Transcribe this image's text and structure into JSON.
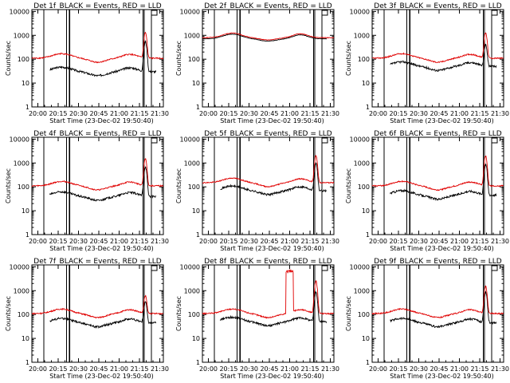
{
  "chart_data": [
    {
      "type": "line",
      "title": "Det 1f_BLACK = Events, RED = LLD",
      "xlabel": "Start Time (23-Dec-02 19:50:40)",
      "ylabel": "Counts/sec",
      "yscale": "log",
      "ylim": [
        1,
        12000
      ],
      "xlim": [
        0,
        110
      ],
      "x_ticks": [
        "20:00",
        "20:15",
        "20:30",
        "20:45",
        "21:00",
        "21:15",
        "21:30"
      ],
      "y_ticks": [
        "1",
        "10",
        "100",
        "1000",
        "10000"
      ],
      "marker_lines": [
        10,
        29,
        31.5,
        93,
        94,
        100
      ],
      "series": [
        {
          "name": "BLACK = Events",
          "color": "#000000",
          "start": 15,
          "end": 104,
          "base": 30,
          "gap_fraction": 0.32,
          "peak": {
            "x": 95,
            "value": 550
          },
          "noise": 0.1
        },
        {
          "name": "RED = LLD",
          "color": "#e00000",
          "start": 0,
          "end": 110,
          "base": 110,
          "gap_fraction": 0.32,
          "peak": {
            "x": 95,
            "value": 1300
          },
          "noise": 0.06
        }
      ]
    },
    {
      "type": "line",
      "title": "Det 2f_BLACK = Events, RED = LLD",
      "xlabel": "Start Time (23-Dec-02 19:50:40)",
      "ylabel": "Counts/sec",
      "yscale": "log",
      "ylim": [
        1,
        12000
      ],
      "xlim": [
        0,
        110
      ],
      "x_ticks": [
        "20:00",
        "20:15",
        "20:30",
        "20:45",
        "21:00",
        "21:15",
        "21:30"
      ],
      "y_ticks": [
        "1",
        "10",
        "100",
        "1000",
        "10000"
      ],
      "marker_lines": [
        10,
        29,
        31.5,
        93,
        94,
        100
      ],
      "series": [
        {
          "name": "BLACK = Events",
          "color": "#000000",
          "start": 0,
          "end": 104,
          "base": 720,
          "gap_fraction": 0.2,
          "peak": null,
          "noise": 0.02
        },
        {
          "name": "RED = LLD",
          "color": "#e00000",
          "start": 0,
          "end": 110,
          "base": 800,
          "gap_fraction": 0.2,
          "peak": null,
          "noise": 0.025
        }
      ]
    },
    {
      "type": "line",
      "title": "Det 3f_BLACK = Events, RED = LLD",
      "xlabel": "Start Time (23-Dec-02 19:50:40)",
      "ylabel": "Counts/sec",
      "yscale": "log",
      "ylim": [
        1,
        12000
      ],
      "xlim": [
        0,
        110
      ],
      "x_ticks": [
        "20:00",
        "20:15",
        "20:30",
        "20:45",
        "21:00",
        "21:15",
        "21:30"
      ],
      "y_ticks": [
        "1",
        "10",
        "100",
        "1000",
        "10000"
      ],
      "marker_lines": [
        10,
        29,
        31.5,
        93,
        94,
        100
      ],
      "series": [
        {
          "name": "BLACK = Events",
          "color": "#000000",
          "start": 15,
          "end": 104,
          "base": 50,
          "gap_fraction": 0.32,
          "peak": {
            "x": 95,
            "value": 400
          },
          "noise": 0.1
        },
        {
          "name": "RED = LLD",
          "color": "#e00000",
          "start": 0,
          "end": 110,
          "base": 110,
          "gap_fraction": 0.32,
          "peak": {
            "x": 95,
            "value": 1300
          },
          "noise": 0.06
        }
      ]
    },
    {
      "type": "line",
      "title": "Det 4f_BLACK = Events, RED = LLD",
      "xlabel": "Start Time (23-Dec-02 19:50:40)",
      "ylabel": "Counts/sec",
      "yscale": "log",
      "ylim": [
        1,
        12000
      ],
      "xlim": [
        0,
        110
      ],
      "x_ticks": [
        "20:00",
        "20:15",
        "20:30",
        "20:45",
        "21:00",
        "21:15",
        "21:30"
      ],
      "y_ticks": [
        "1",
        "10",
        "100",
        "1000",
        "10000"
      ],
      "marker_lines": [
        10,
        29,
        31.5,
        93,
        94,
        100
      ],
      "series": [
        {
          "name": "BLACK = Events",
          "color": "#000000",
          "start": 15,
          "end": 104,
          "base": 40,
          "gap_fraction": 0.32,
          "peak": {
            "x": 95,
            "value": 700
          },
          "noise": 0.1
        },
        {
          "name": "RED = LLD",
          "color": "#e00000",
          "start": 0,
          "end": 110,
          "base": 110,
          "gap_fraction": 0.32,
          "peak": {
            "x": 95,
            "value": 1500
          },
          "noise": 0.06
        }
      ]
    },
    {
      "type": "line",
      "title": "Det 5f_BLACK = Events, RED = LLD",
      "xlabel": "Start Time (23-Dec-02 19:50:40)",
      "ylabel": "Counts/sec",
      "yscale": "log",
      "ylim": [
        1,
        12000
      ],
      "xlim": [
        0,
        110
      ],
      "x_ticks": [
        "20:00",
        "20:15",
        "20:30",
        "20:45",
        "21:00",
        "21:15",
        "21:30"
      ],
      "y_ticks": [
        "1",
        "10",
        "100",
        "1000",
        "10000"
      ],
      "marker_lines": [
        10,
        29,
        31.5,
        93,
        94,
        100
      ],
      "series": [
        {
          "name": "BLACK = Events",
          "color": "#000000",
          "start": 15,
          "end": 104,
          "base": 70,
          "gap_fraction": 0.32,
          "peak": {
            "x": 95,
            "value": 1000
          },
          "noise": 0.1
        },
        {
          "name": "RED = LLD",
          "color": "#e00000",
          "start": 0,
          "end": 110,
          "base": 150,
          "gap_fraction": 0.32,
          "peak": {
            "x": 95,
            "value": 2000
          },
          "noise": 0.05
        }
      ]
    },
    {
      "type": "line",
      "title": "Det 6f_BLACK = Events, RED = LLD",
      "xlabel": "Start Time (23-Dec-02 19:50:40)",
      "ylabel": "Counts/sec",
      "yscale": "log",
      "ylim": [
        1,
        12000
      ],
      "xlim": [
        0,
        110
      ],
      "x_ticks": [
        "20:00",
        "20:15",
        "20:30",
        "20:45",
        "21:00",
        "21:15",
        "21:30"
      ],
      "y_ticks": [
        "1",
        "10",
        "100",
        "1000",
        "10000"
      ],
      "marker_lines": [
        10,
        29,
        31.5,
        93,
        94,
        100
      ],
      "series": [
        {
          "name": "BLACK = Events",
          "color": "#000000",
          "start": 15,
          "end": 104,
          "base": 45,
          "gap_fraction": 0.32,
          "peak": {
            "x": 95,
            "value": 900
          },
          "noise": 0.1
        },
        {
          "name": "RED = LLD",
          "color": "#e00000",
          "start": 0,
          "end": 110,
          "base": 110,
          "gap_fraction": 0.32,
          "peak": {
            "x": 95,
            "value": 2000
          },
          "noise": 0.06
        }
      ]
    },
    {
      "type": "line",
      "title": "Det 7f_BLACK = Events, RED = LLD",
      "xlabel": "Start Time (23-Dec-02 19:50:40)",
      "ylabel": "Counts/sec",
      "yscale": "log",
      "ylim": [
        1,
        12000
      ],
      "xlim": [
        0,
        110
      ],
      "x_ticks": [
        "20:00",
        "20:15",
        "20:30",
        "20:45",
        "21:00",
        "21:15",
        "21:30"
      ],
      "y_ticks": [
        "1",
        "10",
        "100",
        "1000",
        "10000"
      ],
      "marker_lines": [
        10,
        29,
        31.5,
        93,
        94,
        100
      ],
      "series": [
        {
          "name": "BLACK = Events",
          "color": "#000000",
          "start": 15,
          "end": 104,
          "base": 45,
          "gap_fraction": 0.32,
          "peak": {
            "x": 95,
            "value": 350
          },
          "noise": 0.1
        },
        {
          "name": "RED = LLD",
          "color": "#e00000",
          "start": 0,
          "end": 110,
          "base": 110,
          "gap_fraction": 0.32,
          "peak": {
            "x": 95,
            "value": 600
          },
          "noise": 0.06
        }
      ]
    },
    {
      "type": "line",
      "title": "Det 8f_BLACK = Events, RED = LLD",
      "xlabel": "Start Time (23-Dec-02 19:50:40)",
      "ylabel": "Counts/sec",
      "yscale": "log",
      "ylim": [
        1,
        12000
      ],
      "xlim": [
        0,
        110
      ],
      "x_ticks": [
        "20:00",
        "20:15",
        "20:30",
        "20:45",
        "21:00",
        "21:15",
        "21:30"
      ],
      "y_ticks": [
        "1",
        "10",
        "100",
        "1000",
        "10000"
      ],
      "marker_lines": [
        10,
        29,
        31.5,
        93,
        94,
        100
      ],
      "series": [
        {
          "name": "BLACK = Events",
          "color": "#000000",
          "start": 15,
          "end": 104,
          "base": 50,
          "gap_fraction": 0.32,
          "peak": {
            "x": 95,
            "value": 900
          },
          "noise": 0.1
        },
        {
          "name": "RED = LLD",
          "color": "#e00000",
          "start": 0,
          "end": 110,
          "base": 110,
          "gap_fraction": 0.32,
          "peak": {
            "x": 95,
            "value": 2500
          },
          "noise": 0.06,
          "spike": {
            "x0": 70,
            "x1": 76,
            "value": 7000
          }
        }
      ]
    },
    {
      "type": "line",
      "title": "Det 9f_BLACK = Events, RED = LLD",
      "xlabel": "Start Time (23-Dec-02 19:50:40)",
      "ylabel": "Counts/sec",
      "yscale": "log",
      "ylim": [
        1,
        12000
      ],
      "xlim": [
        0,
        110
      ],
      "x_ticks": [
        "20:00",
        "20:15",
        "20:30",
        "20:45",
        "21:00",
        "21:15",
        "21:30"
      ],
      "y_ticks": [
        "1",
        "10",
        "100",
        "1000",
        "10000"
      ],
      "marker_lines": [
        10,
        29,
        31.5,
        93,
        94,
        100
      ],
      "series": [
        {
          "name": "BLACK = Events",
          "color": "#000000",
          "start": 15,
          "end": 104,
          "base": 45,
          "gap_fraction": 0.32,
          "peak": {
            "x": 95,
            "value": 900
          },
          "noise": 0.1
        },
        {
          "name": "RED = LLD",
          "color": "#e00000",
          "start": 0,
          "end": 110,
          "base": 110,
          "gap_fraction": 0.32,
          "peak": {
            "x": 95,
            "value": 1500
          },
          "noise": 0.06
        }
      ]
    }
  ]
}
